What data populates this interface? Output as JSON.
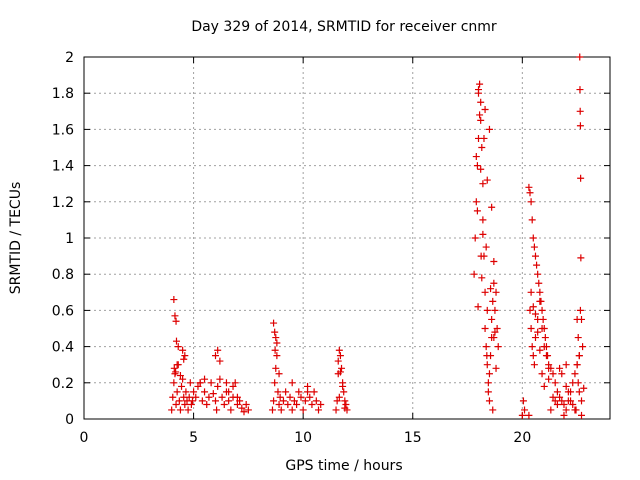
{
  "chart_data": {
    "type": "scatter",
    "title": "Day 329 of 2014, SRMTID for receiver cnmr",
    "xlabel": "GPS time / hours",
    "ylabel": "SRMTID / TECUs",
    "xlim": [
      0,
      24
    ],
    "ylim": [
      0,
      2
    ],
    "xticks": [
      "0",
      "5",
      "10",
      "15",
      "20"
    ],
    "yticks": [
      "0",
      "0.2",
      "0.4",
      "0.6",
      "0.8",
      "1",
      "1.2",
      "1.4",
      "1.6",
      "1.8",
      "2"
    ],
    "marker": "+",
    "grid": true,
    "series": [
      {
        "name": "SRMTID",
        "color": "#dd0000",
        "x": [
          4.0,
          4.05,
          4.1,
          4.15,
          4.2,
          4.25,
          4.3,
          4.35,
          4.4,
          4.45,
          4.5,
          4.55,
          4.6,
          4.65,
          4.7,
          4.75,
          4.8,
          4.85,
          4.9,
          4.95,
          5.0,
          5.1,
          5.2,
          5.3,
          5.4,
          5.5,
          5.6,
          5.7,
          5.8,
          5.9,
          6.0,
          6.05,
          6.1,
          6.2,
          6.3,
          6.4,
          6.5,
          6.6,
          6.7,
          6.8,
          6.9,
          7.0,
          7.1,
          7.2,
          7.3,
          7.4,
          7.5,
          4.1,
          4.15,
          4.2,
          4.22,
          4.3,
          4.5,
          4.55,
          4.6,
          4.12,
          4.18,
          4.25,
          4.4,
          5.3,
          5.5,
          6.0,
          6.1,
          6.2,
          6.5,
          6.6,
          6.8,
          7.0,
          8.6,
          8.65,
          8.7,
          8.75,
          8.8,
          8.85,
          8.9,
          8.95,
          9.0,
          9.1,
          9.2,
          9.3,
          9.4,
          9.5,
          9.6,
          9.7,
          9.8,
          9.9,
          10.0,
          10.1,
          10.2,
          10.3,
          10.4,
          10.5,
          10.6,
          10.7,
          10.8,
          8.65,
          8.7,
          8.75,
          8.8,
          8.72,
          8.9,
          9.5,
          10.2,
          11.5,
          11.55,
          11.6,
          11.65,
          11.7,
          11.75,
          11.8,
          11.85,
          11.9,
          11.95,
          12.0,
          11.6,
          11.7,
          11.8,
          11.65,
          11.9,
          17.8,
          17.85,
          17.9,
          17.95,
          18.0,
          18.0,
          18.05,
          18.1,
          18.1,
          18.15,
          18.2,
          18.2,
          18.25,
          18.3,
          18.3,
          18.35,
          18.4,
          18.4,
          18.45,
          18.5,
          18.5,
          18.55,
          18.6,
          18.6,
          18.65,
          18.7,
          18.7,
          18.75,
          18.8,
          18.85,
          18.9,
          17.9,
          18.0,
          18.1,
          18.2,
          18.3,
          18.4,
          18.5,
          18.6,
          18.7,
          18.8,
          17.95,
          18.05,
          18.15,
          18.25,
          18.35,
          18.45,
          18.55,
          18.65,
          18.75,
          17.98,
          18.12,
          18.38,
          20.0,
          20.05,
          20.1,
          20.3,
          20.35,
          20.4,
          20.45,
          20.5,
          20.55,
          20.6,
          20.65,
          20.7,
          20.75,
          20.8,
          20.85,
          20.9,
          20.95,
          21.0,
          21.05,
          21.1,
          21.15,
          21.2,
          21.3,
          21.4,
          21.5,
          21.6,
          21.7,
          21.8,
          21.9,
          22.0,
          22.1,
          22.2,
          22.3,
          22.4,
          22.5,
          22.6,
          22.7,
          20.3,
          20.35,
          20.4,
          20.45,
          20.5,
          20.55,
          20.6,
          20.7,
          20.8,
          20.9,
          21.0,
          21.1,
          21.2,
          20.4,
          20.5,
          20.6,
          20.7,
          20.8,
          20.9,
          21.0,
          21.2,
          21.4,
          21.6,
          21.8,
          22.0,
          22.2,
          22.4,
          22.5,
          22.55,
          22.6,
          22.62,
          22.63,
          22.64,
          22.65,
          22.66,
          22.67,
          22.7,
          22.75,
          22.8,
          22.5,
          22.55,
          22.6,
          22.7,
          22.45,
          22.65,
          22.0,
          21.7,
          21.5,
          21.3,
          21.9,
          22.1,
          22.3
        ],
        "y": [
          0.05,
          0.12,
          0.2,
          0.25,
          0.08,
          0.15,
          0.3,
          0.1,
          0.05,
          0.18,
          0.22,
          0.12,
          0.08,
          0.15,
          0.1,
          0.05,
          0.12,
          0.2,
          0.08,
          0.1,
          0.15,
          0.12,
          0.18,
          0.2,
          0.1,
          0.15,
          0.08,
          0.12,
          0.2,
          0.14,
          0.1,
          0.05,
          0.18,
          0.22,
          0.12,
          0.08,
          0.15,
          0.1,
          0.05,
          0.12,
          0.2,
          0.08,
          0.1,
          0.06,
          0.04,
          0.08,
          0.05,
          0.66,
          0.57,
          0.54,
          0.43,
          0.4,
          0.38,
          0.33,
          0.35,
          0.28,
          0.26,
          0.3,
          0.24,
          0.2,
          0.22,
          0.35,
          0.38,
          0.32,
          0.2,
          0.15,
          0.18,
          0.12,
          0.05,
          0.1,
          0.2,
          0.28,
          0.35,
          0.15,
          0.08,
          0.12,
          0.05,
          0.1,
          0.15,
          0.08,
          0.12,
          0.05,
          0.1,
          0.08,
          0.15,
          0.12,
          0.05,
          0.1,
          0.18,
          0.12,
          0.08,
          0.15,
          0.1,
          0.05,
          0.08,
          0.53,
          0.48,
          0.45,
          0.42,
          0.38,
          0.25,
          0.2,
          0.15,
          0.05,
          0.1,
          0.25,
          0.38,
          0.35,
          0.28,
          0.2,
          0.15,
          0.1,
          0.08,
          0.05,
          0.32,
          0.26,
          0.18,
          0.12,
          0.06,
          0.8,
          1.0,
          1.2,
          1.4,
          1.55,
          1.8,
          1.85,
          1.75,
          1.65,
          1.5,
          1.3,
          1.1,
          0.9,
          0.7,
          0.5,
          0.4,
          0.6,
          0.3,
          0.2,
          0.1,
          0.25,
          0.35,
          0.45,
          0.55,
          0.65,
          0.75,
          0.45,
          0.6,
          0.7,
          0.5,
          0.4,
          1.45,
          1.82,
          1.38,
          1.02,
          1.71,
          1.32,
          1.6,
          1.17,
          0.87,
          0.28,
          1.15,
          1.68,
          0.78,
          1.55,
          0.95,
          0.15,
          0.72,
          0.05,
          0.48,
          0.62,
          0.9,
          0.35,
          0.02,
          0.1,
          0.05,
          1.28,
          1.25,
          1.2,
          1.1,
          1.0,
          0.95,
          0.9,
          0.85,
          0.8,
          0.75,
          0.7,
          0.65,
          0.6,
          0.55,
          0.5,
          0.45,
          0.4,
          0.35,
          0.3,
          0.28,
          0.25,
          0.2,
          0.15,
          0.12,
          0.1,
          0.08,
          0.05,
          0.1,
          0.15,
          0.2,
          0.25,
          0.3,
          0.35,
          0.02,
          0.02,
          0.6,
          0.5,
          0.4,
          0.35,
          0.3,
          0.45,
          0.55,
          0.65,
          0.5,
          0.4,
          0.35,
          0.28,
          0.7,
          0.62,
          0.58,
          0.48,
          0.38,
          0.25,
          0.18,
          0.22,
          0.12,
          0.08,
          0.25,
          0.18,
          0.1,
          0.05,
          0.55,
          0.45,
          0.35,
          2.0,
          1.82,
          1.7,
          1.62,
          1.33,
          0.89,
          0.55,
          0.4,
          0.17,
          0.3,
          0.2,
          0.15,
          0.1,
          0.05,
          0.6,
          0.3,
          0.28,
          0.1,
          0.05,
          0.02,
          0.15,
          0.08
        ]
      }
    ]
  }
}
